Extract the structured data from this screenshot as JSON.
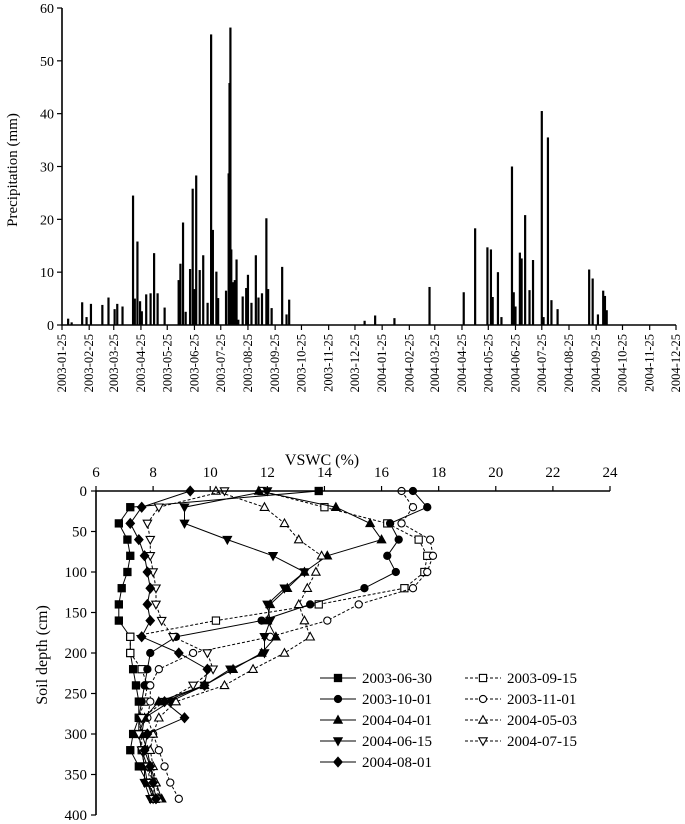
{
  "chart_data": [
    {
      "type": "bar",
      "ylabel": "Precipitation (mm)",
      "ylim": [
        0,
        60
      ],
      "yticks": [
        0,
        10,
        20,
        30,
        40,
        50,
        60
      ],
      "xlim": [
        "2003-01-25",
        "2004-12-25"
      ],
      "xtick_labels": [
        "2003-01-25",
        "2003-02-25",
        "2003-03-25",
        "2003-04-25",
        "2003-05-25",
        "2003-06-25",
        "2003-07-25",
        "2003-08-25",
        "2003-09-25",
        "2003-10-25",
        "2003-11-25",
        "2003-12-25",
        "2004-01-25",
        "2004-02-25",
        "2004-03-25",
        "2004-04-25",
        "2004-05-25",
        "2004-06-25",
        "2004-07-25",
        "2004-08-25",
        "2004-09-25",
        "2004-10-25",
        "2004-11-25",
        "2004-12-25"
      ],
      "grid": false,
      "bars": [
        {
          "x": "2003-02-01",
          "y": 1.2
        },
        {
          "x": "2003-02-05",
          "y": 0.5
        },
        {
          "x": "2003-02-17",
          "y": 4.3
        },
        {
          "x": "2003-02-22",
          "y": 1.5
        },
        {
          "x": "2003-02-27",
          "y": 4
        },
        {
          "x": "2003-03-12",
          "y": 3.8
        },
        {
          "x": "2003-03-19",
          "y": 5.2
        },
        {
          "x": "2003-03-26",
          "y": 3
        },
        {
          "x": "2003-03-29",
          "y": 4
        },
        {
          "x": "2003-04-04",
          "y": 3.5
        },
        {
          "x": "2003-04-16",
          "y": 24.5
        },
        {
          "x": "2003-04-18",
          "y": 5
        },
        {
          "x": "2003-04-21",
          "y": 15.8
        },
        {
          "x": "2003-04-24",
          "y": 4.5
        },
        {
          "x": "2003-04-26",
          "y": 2.6
        },
        {
          "x": "2003-05-01",
          "y": 5.8
        },
        {
          "x": "2003-05-06",
          "y": 6
        },
        {
          "x": "2003-05-10",
          "y": 13.6
        },
        {
          "x": "2003-05-14",
          "y": 6
        },
        {
          "x": "2003-05-22",
          "y": 3.3
        },
        {
          "x": "2003-06-07",
          "y": 8.5
        },
        {
          "x": "2003-06-09",
          "y": 11.6
        },
        {
          "x": "2003-06-12",
          "y": 19.4
        },
        {
          "x": "2003-06-15",
          "y": 2.5
        },
        {
          "x": "2003-06-20",
          "y": 10.6
        },
        {
          "x": "2003-06-23",
          "y": 25.8
        },
        {
          "x": "2003-06-25",
          "y": 6.8
        },
        {
          "x": "2003-06-27",
          "y": 28.3
        },
        {
          "x": "2003-07-01",
          "y": 10.4
        },
        {
          "x": "2003-07-05",
          "y": 13.2
        },
        {
          "x": "2003-07-10",
          "y": 4.2
        },
        {
          "x": "2003-07-14",
          "y": 55
        },
        {
          "x": "2003-07-16",
          "y": 18
        },
        {
          "x": "2003-07-20",
          "y": 10.1
        },
        {
          "x": "2003-07-22",
          "y": 5.1
        },
        {
          "x": "2003-07-31",
          "y": 6.5
        },
        {
          "x": "2003-08-03",
          "y": 28.7
        },
        {
          "x": "2003-08-04",
          "y": 45.8
        },
        {
          "x": "2003-08-05",
          "y": 56.3
        },
        {
          "x": "2003-08-06",
          "y": 14.3
        },
        {
          "x": "2003-08-08",
          "y": 8.1
        },
        {
          "x": "2003-08-10",
          "y": 8.5
        },
        {
          "x": "2003-08-12",
          "y": 12.4
        },
        {
          "x": "2003-08-14",
          "y": 1
        },
        {
          "x": "2003-08-19",
          "y": 5.4
        },
        {
          "x": "2003-08-23",
          "y": 7
        },
        {
          "x": "2003-08-25",
          "y": 9.5
        },
        {
          "x": "2003-08-29",
          "y": 4.2
        },
        {
          "x": "2003-09-03",
          "y": 13.2
        },
        {
          "x": "2003-09-06",
          "y": 5.2
        },
        {
          "x": "2003-09-10",
          "y": 6
        },
        {
          "x": "2003-09-15",
          "y": 20.2
        },
        {
          "x": "2003-09-17",
          "y": 6.8
        },
        {
          "x": "2003-09-21",
          "y": 3.2
        },
        {
          "x": "2003-10-03",
          "y": 11
        },
        {
          "x": "2003-10-08",
          "y": 2
        },
        {
          "x": "2003-10-11",
          "y": 4.8
        },
        {
          "x": "2004-01-05",
          "y": 0.8
        },
        {
          "x": "2004-01-17",
          "y": 1.8
        },
        {
          "x": "2004-02-08",
          "y": 1.3
        },
        {
          "x": "2004-03-19",
          "y": 7.2
        },
        {
          "x": "2004-04-27",
          "y": 6.2
        },
        {
          "x": "2004-05-10",
          "y": 18.3
        },
        {
          "x": "2004-05-24",
          "y": 14.7
        },
        {
          "x": "2004-05-28",
          "y": 14.3
        },
        {
          "x": "2004-05-30",
          "y": 5.3
        },
        {
          "x": "2004-06-05",
          "y": 10
        },
        {
          "x": "2004-06-09",
          "y": 1.5
        },
        {
          "x": "2004-06-21",
          "y": 30
        },
        {
          "x": "2004-06-23",
          "y": 6.2
        },
        {
          "x": "2004-06-25",
          "y": 3.5
        },
        {
          "x": "2004-06-30",
          "y": 13.7
        },
        {
          "x": "2004-07-02",
          "y": 12.6
        },
        {
          "x": "2004-07-06",
          "y": 20.8
        },
        {
          "x": "2004-07-11",
          "y": 6.6
        },
        {
          "x": "2004-07-15",
          "y": 12.3
        },
        {
          "x": "2004-07-25",
          "y": 40.5
        },
        {
          "x": "2004-07-27",
          "y": 1.5
        },
        {
          "x": "2004-08-01",
          "y": 35.5
        },
        {
          "x": "2004-08-05",
          "y": 4.7
        },
        {
          "x": "2004-08-12",
          "y": 3
        },
        {
          "x": "2004-09-17",
          "y": 10.5
        },
        {
          "x": "2004-09-21",
          "y": 8.8
        },
        {
          "x": "2004-09-27",
          "y": 2
        },
        {
          "x": "2004-10-03",
          "y": 6.5
        },
        {
          "x": "2004-10-05",
          "y": 5.5
        },
        {
          "x": "2004-10-07",
          "y": 2.8
        }
      ]
    },
    {
      "type": "line",
      "xlabel": "VSWC (%)",
      "ylabel": "Soil depth (cm)",
      "xlim": [
        6,
        24
      ],
      "ylim": [
        0,
        400
      ],
      "y_inverted": true,
      "x_axis_position": "top",
      "xticks": [
        6,
        8,
        10,
        12,
        14,
        16,
        18,
        20,
        22,
        24
      ],
      "yticks": [
        0,
        50,
        100,
        150,
        200,
        250,
        300,
        350,
        400
      ],
      "grid": false,
      "legend_position": "bottom-right",
      "depths": [
        0,
        20,
        40,
        60,
        80,
        100,
        120,
        140,
        160,
        180,
        200,
        220,
        240,
        260,
        280,
        300,
        320,
        340,
        360,
        380
      ],
      "series": [
        {
          "name": "2003-06-30",
          "marker": "square",
          "filled": true,
          "dash": false,
          "values": [
            13.8,
            7.2,
            6.8,
            7.1,
            7.2,
            7.1,
            6.9,
            6.8,
            6.8,
            7.2,
            7.2,
            7.3,
            7.4,
            7.5,
            7.5,
            7.3,
            7.2,
            7.5,
            7.8,
            8.1
          ]
        },
        {
          "name": "2003-09-15",
          "marker": "square",
          "filled": false,
          "dash": true,
          "values": [
            11.8,
            14,
            16.2,
            17.3,
            17.6,
            17.5,
            16.8,
            13.8,
            10.2,
            7.2,
            7.2,
            7.6,
            7.8,
            7.7,
            7.5,
            7.6,
            7.6,
            7.8,
            8,
            8
          ]
        },
        {
          "name": "2003-10-01",
          "marker": "circle",
          "filled": true,
          "dash": false,
          "values": [
            17.1,
            17.6,
            16.3,
            16.6,
            16.2,
            16.5,
            15.4,
            13.5,
            11.8,
            8.8,
            7.9,
            7.8,
            7.7,
            7.6,
            7.5,
            7.5,
            7.6,
            7.7,
            7.8,
            8
          ]
        },
        {
          "name": "2003-11-01",
          "marker": "circle",
          "filled": false,
          "dash": true,
          "values": [
            16.7,
            17.1,
            16.7,
            17.7,
            17.8,
            17.6,
            17.1,
            15.2,
            14.1,
            12.1,
            9.4,
            8.2,
            7.9,
            7.9,
            7.8,
            8,
            8.2,
            8.4,
            8.6,
            8.9
          ]
        },
        {
          "name": "2004-04-01",
          "marker": "triangle-up",
          "filled": true,
          "dash": false,
          "values": [
            11.7,
            14.4,
            15.6,
            16,
            14.1,
            13.3,
            12.7,
            12.1,
            12,
            12.3,
            11.8,
            10.8,
            9.8,
            8.2,
            7.7,
            7.6,
            7.8,
            7.9,
            8.1,
            8.3
          ]
        },
        {
          "name": "2004-05-03",
          "marker": "triangle-up",
          "filled": false,
          "dash": true,
          "values": [
            10.2,
            11.9,
            12.6,
            13.1,
            13.9,
            13.7,
            13.4,
            13.1,
            13.3,
            13.5,
            12.6,
            11.5,
            10.5,
            8.8,
            8.2,
            8,
            7.9,
            8,
            8.1,
            8.2
          ]
        },
        {
          "name": "2004-06-15",
          "marker": "triangle-down",
          "filled": true,
          "dash": false,
          "values": [
            12,
            9.1,
            9.1,
            10.6,
            12.2,
            13.3,
            12.6,
            12,
            12.1,
            11.9,
            11.9,
            10.7,
            9.8,
            8.6,
            7.7,
            7.5,
            7.6,
            7.7,
            7.7,
            7.9
          ]
        },
        {
          "name": "2004-07-15",
          "marker": "triangle-down",
          "filled": false,
          "dash": true,
          "values": [
            10.5,
            8.2,
            7.8,
            7.9,
            7.9,
            8,
            8.1,
            8.1,
            8.3,
            8.7,
            9.9,
            10.1,
            9.4,
            8.4,
            7.6,
            7.5,
            7.6,
            7.8,
            7.9,
            8
          ]
        },
        {
          "name": "2004-08-01",
          "marker": "diamond",
          "filled": true,
          "dash": false,
          "values": [
            9.3,
            7.6,
            7.2,
            7.5,
            7.7,
            7.8,
            7.9,
            7.8,
            7.9,
            7.6,
            8.9,
            9.9,
            9.8,
            8.4,
            9.1,
            7.8,
            7.7,
            7.9,
            8,
            8.1
          ]
        }
      ]
    }
  ]
}
